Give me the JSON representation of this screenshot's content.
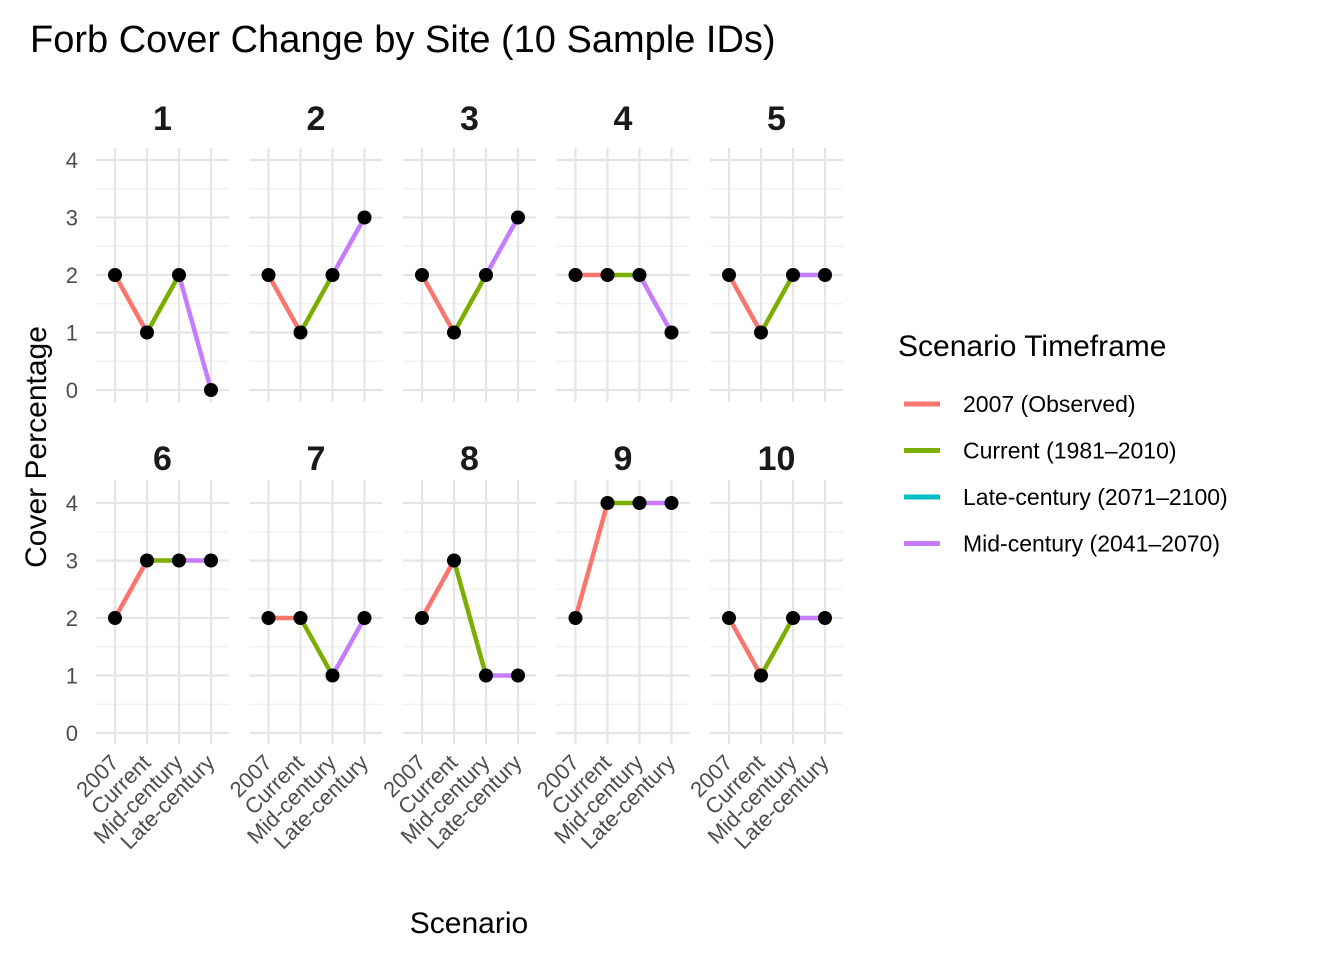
{
  "chart_data": {
    "type": "line",
    "title": "Forb Cover Change by Site (10 Sample IDs)",
    "xlabel": "Scenario",
    "ylabel": "Cover Percentage",
    "categories": [
      "2007",
      "Current",
      "Mid-century",
      "Late-century"
    ],
    "y_ticks": [
      "0",
      "1",
      "2",
      "3",
      "4"
    ],
    "ylim": [
      0,
      4
    ],
    "facets": [
      {
        "label": "1",
        "values": [
          2,
          1,
          2,
          0
        ]
      },
      {
        "label": "2",
        "values": [
          2,
          1,
          2,
          3
        ]
      },
      {
        "label": "3",
        "values": [
          2,
          1,
          2,
          3
        ]
      },
      {
        "label": "4",
        "values": [
          2,
          2,
          2,
          1
        ]
      },
      {
        "label": "5",
        "values": [
          2,
          1,
          2,
          2
        ]
      },
      {
        "label": "6",
        "values": [
          2,
          3,
          3,
          3
        ]
      },
      {
        "label": "7",
        "values": [
          2,
          2,
          1,
          2
        ]
      },
      {
        "label": "8",
        "values": [
          2,
          3,
          1,
          1
        ]
      },
      {
        "label": "9",
        "values": [
          2,
          4,
          4,
          4
        ]
      },
      {
        "label": "10",
        "values": [
          2,
          1,
          2,
          2
        ]
      }
    ],
    "segment_colors": [
      "#F8766D",
      "#7CAE00",
      "#C77CFF"
    ],
    "grid": true,
    "legend_position": "right",
    "legend": {
      "title": "Scenario Timeframe",
      "entries": [
        {
          "label": "2007 (Observed)",
          "color": "#F8766D"
        },
        {
          "label": "Current (1981–2010)",
          "color": "#7CAE00"
        },
        {
          "label": "Late-century (2071–2100)",
          "color": "#00BFC4"
        },
        {
          "label": "Mid-century (2041–2070)",
          "color": "#C77CFF"
        }
      ]
    },
    "point_color": "#000000"
  }
}
